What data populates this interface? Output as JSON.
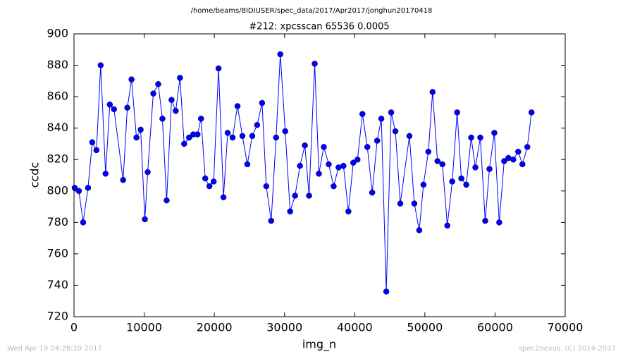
{
  "chart_data": {
    "type": "line",
    "title": "/home/beams/8IDIUSER/spec_data/2017/Apr2017/jonghun20170418",
    "subtitle": "#212: xpcsscan 65536 0.0005",
    "x_label": "img_n",
    "y_label": "ccdc",
    "annotations": [
      "Wed Apr 19 04:28:20 2017",
      "spec2nexus, (C) 2014-2017"
    ],
    "x": [
      100,
      700,
      1300,
      2000,
      2600,
      3200,
      3800,
      4500,
      5100,
      5700,
      7000,
      7600,
      8200,
      8900,
      9500,
      10100,
      10500,
      11300,
      12000,
      12600,
      13200,
      13900,
      14500,
      15100,
      15700,
      16400,
      17000,
      17600,
      18100,
      18700,
      19300,
      19900,
      20600,
      21300,
      21900,
      22600,
      23300,
      24000,
      24700,
      25400,
      26100,
      26800,
      27400,
      28100,
      28800,
      29400,
      30100,
      30800,
      31500,
      32200,
      32900,
      33500,
      34300,
      34900,
      35600,
      36300,
      37000,
      37700,
      38400,
      39100,
      39800,
      40400,
      41100,
      41800,
      42500,
      43200,
      43800,
      44500,
      45200,
      45800,
      46500,
      47800,
      48500,
      49200,
      49800,
      50500,
      51100,
      51800,
      52500,
      53200,
      53900,
      54600,
      55200,
      55900,
      56600,
      57200,
      57900,
      58600,
      59200,
      59900,
      60600,
      61300,
      61900,
      62600,
      63300,
      63900,
      64600,
      65200
    ],
    "series": [
      {
        "name": "ccdc",
        "color": "#0000ff",
        "values": [
          802,
          800,
          780,
          802,
          831,
          826,
          880,
          811,
          855,
          852,
          807,
          853,
          871,
          834,
          839,
          782,
          812,
          862,
          868,
          846,
          794,
          858,
          851,
          872,
          830,
          834,
          836,
          836,
          846,
          808,
          803,
          806,
          878,
          796,
          837,
          834,
          854,
          835,
          817,
          835,
          842,
          856,
          803,
          781,
          834,
          887,
          838,
          787,
          797,
          816,
          829,
          797,
          881,
          811,
          828,
          817,
          803,
          815,
          816,
          787,
          818,
          820,
          849,
          828,
          799,
          832,
          846,
          736,
          850,
          838,
          792,
          835,
          792,
          775,
          804,
          825,
          863,
          819,
          817,
          778,
          806,
          850,
          808,
          804,
          834,
          815,
          834,
          781,
          814,
          837,
          780,
          819,
          821,
          820,
          825,
          817,
          828,
          850
        ]
      }
    ],
    "xlim": [
      0,
      70000
    ],
    "xticks": [
      0,
      10000,
      20000,
      30000,
      40000,
      50000,
      60000,
      70000
    ],
    "ylim": [
      720,
      900
    ],
    "yticks": [
      720,
      740,
      760,
      780,
      800,
      820,
      840,
      860,
      880,
      900
    ],
    "grid": false
  }
}
